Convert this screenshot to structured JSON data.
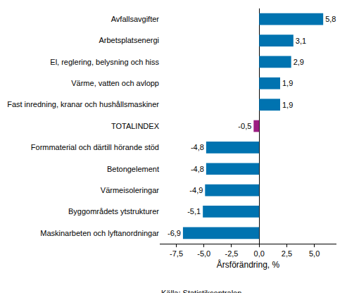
{
  "chart_data": {
    "type": "bar",
    "orientation": "horizontal",
    "categories": [
      "Avfallsavgifter",
      "Arbetsplatsenergi",
      "El, reglering, belysning och hiss",
      "Värme, vatten och avlopp",
      "Fast inredning, kranar och hushållsmaskiner",
      "TOTALINDEX",
      "Formmaterial och därtill hörande stöd",
      "Betongelement",
      "Värmeisoleringar",
      "Byggområdets ytstrukturer",
      "Maskinarbeten och lyftanordningar"
    ],
    "values": [
      5.8,
      3.1,
      2.9,
      1.9,
      1.9,
      -0.5,
      -4.8,
      -4.8,
      -4.9,
      -5.1,
      -6.9
    ],
    "value_labels": [
      "5,8",
      "3,1",
      "2,9",
      "1,9",
      "1,9",
      "-0,5",
      "-4,8",
      "-4,8",
      "-4,9",
      "-5,1",
      "-6,9"
    ],
    "colors": [
      "#0073b0",
      "#0073b0",
      "#0073b0",
      "#0073b0",
      "#0073b0",
      "#9c1d82",
      "#0073b0",
      "#0073b0",
      "#0073b0",
      "#0073b0",
      "#0073b0"
    ],
    "data_labels": true,
    "xlabel": "Årsförändring, %",
    "xlim": [
      -9,
      7
    ],
    "xticks": [
      {
        "value": -7.5,
        "label": "-7,5"
      },
      {
        "value": -5,
        "label": "-5,0"
      },
      {
        "value": -2.5,
        "label": "-2,5"
      },
      {
        "value": 0,
        "label": "0,0"
      },
      {
        "value": 2.5,
        "label": "2,5"
      },
      {
        "value": 5,
        "label": "5,0"
      }
    ],
    "grid": false,
    "source": "Källa: Statistikcentralen"
  }
}
